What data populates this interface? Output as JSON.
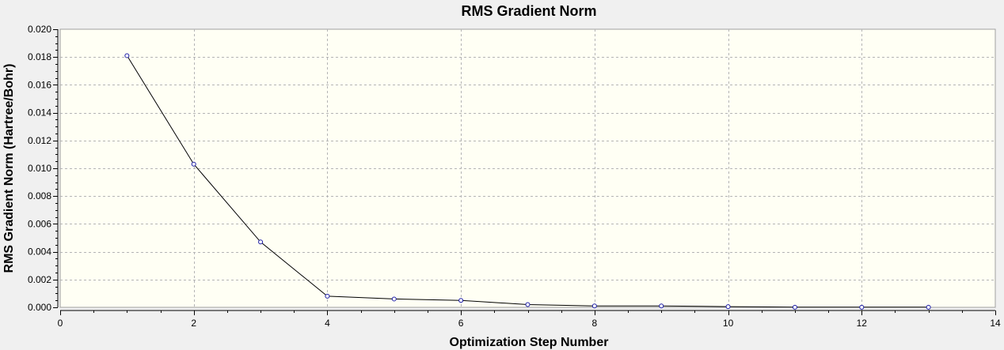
{
  "colors": {
    "page_background": "#f0f0f0",
    "plot_background": "#fffff4",
    "grid": "#b4b4b4",
    "line": "#000000",
    "marker": "#1a1aa6"
  },
  "chart_data": {
    "type": "line",
    "title": "RMS Gradient Norm",
    "xlabel": "Optimization Step Number",
    "ylabel": "RMS Gradient Norm (Hartree/Bohr)",
    "xlim": [
      0,
      14
    ],
    "ylim": [
      0,
      0.02
    ],
    "x_ticks": [
      "0",
      "2",
      "4",
      "6",
      "8",
      "10",
      "12",
      "14"
    ],
    "x_tick_values": [
      0,
      2,
      4,
      6,
      8,
      10,
      12,
      14
    ],
    "y_ticks": [
      "0.000",
      "0.002",
      "0.004",
      "0.006",
      "0.008",
      "0.010",
      "0.012",
      "0.014",
      "0.016",
      "0.018",
      "0.020"
    ],
    "y_tick_values": [
      0,
      0.002,
      0.004,
      0.006,
      0.008,
      0.01,
      0.012,
      0.014,
      0.016,
      0.018,
      0.02
    ],
    "grid": true,
    "series": [
      {
        "x": [
          1,
          2,
          3,
          4,
          5,
          6,
          7,
          8,
          9,
          10,
          11,
          12,
          13
        ],
        "values": [
          0.0181,
          0.0103,
          0.0047,
          0.0008,
          0.0006,
          0.0005,
          0.0002,
          0.0001,
          0.0001,
          5e-05,
          1e-05,
          1e-05,
          1e-05
        ]
      }
    ]
  }
}
